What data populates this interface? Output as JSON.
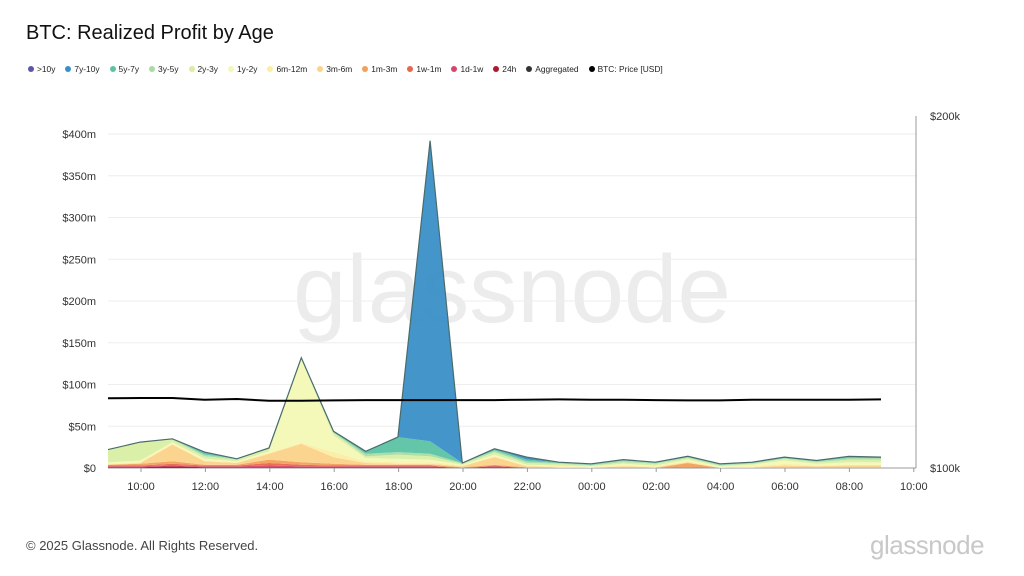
{
  "chart_data": {
    "type": "area",
    "title": "BTC: Realized Profit by Age",
    "x": [
      "09:00",
      "10:00",
      "11:00",
      "12:00",
      "13:00",
      "14:00",
      "15:00",
      "16:00",
      "17:00",
      "18:00",
      "19:00",
      "20:00",
      "21:00",
      "22:00",
      "23:00",
      "00:00",
      "01:00",
      "02:00",
      "03:00",
      "04:00",
      "05:00",
      "06:00",
      "07:00",
      "08:00",
      "09:00"
    ],
    "x_ticks": [
      "10:00",
      "12:00",
      "14:00",
      "16:00",
      "18:00",
      "20:00",
      "22:00",
      "00:00",
      "02:00",
      "04:00",
      "06:00",
      "08:00",
      "10:00"
    ],
    "y_ticks": [
      "$0",
      "$50m",
      "$100m",
      "$150m",
      "$200m",
      "$250m",
      "$300m",
      "$350m",
      "$400m"
    ],
    "y2_ticks": [
      "$100k",
      "$200k"
    ],
    "ylim": [
      0,
      400
    ],
    "y2lim": [
      100000,
      200000
    ],
    "stacking": "stacked",
    "grid": true,
    "legend_position": "top-left",
    "series": [
      {
        "name": "24h",
        "color": "#b0172f",
        "values": [
          1,
          1,
          2,
          1,
          1,
          1,
          1,
          1,
          1,
          1,
          1,
          0,
          1,
          0,
          0,
          0,
          0,
          0,
          0,
          0,
          0,
          0,
          0,
          0,
          0
        ]
      },
      {
        "name": "1d-1w",
        "color": "#d9466b",
        "values": [
          1,
          1,
          1,
          1,
          1,
          2,
          1,
          1,
          1,
          1,
          1,
          0,
          1,
          0,
          0,
          0,
          0,
          0,
          0,
          0,
          0,
          0,
          0,
          0,
          0
        ]
      },
      {
        "name": "1w-1m",
        "color": "#e8674f",
        "values": [
          1,
          1,
          2,
          1,
          1,
          3,
          2,
          1,
          1,
          1,
          1,
          0,
          1,
          0,
          0,
          0,
          0,
          0,
          1,
          0,
          0,
          0,
          0,
          0,
          0
        ]
      },
      {
        "name": "1m-3m",
        "color": "#f2a05b",
        "values": [
          1,
          2,
          3,
          1,
          1,
          4,
          3,
          2,
          1,
          1,
          1,
          1,
          1,
          1,
          0,
          0,
          1,
          0,
          5,
          0,
          0,
          1,
          1,
          1,
          1
        ]
      },
      {
        "name": "3m-6m",
        "color": "#fbd38a",
        "values": [
          0,
          1,
          20,
          4,
          2,
          7,
          22,
          8,
          2,
          1,
          1,
          1,
          9,
          1,
          1,
          0,
          1,
          1,
          1,
          0,
          1,
          2,
          1,
          2,
          2
        ]
      },
      {
        "name": "6m-12m",
        "color": "#fbeea3",
        "values": [
          1,
          1,
          1,
          1,
          1,
          1,
          1,
          6,
          2,
          2,
          2,
          1,
          1,
          1,
          1,
          1,
          1,
          1,
          1,
          1,
          1,
          2,
          1,
          1,
          1
        ]
      },
      {
        "name": "1y-2y",
        "color": "#f3f8b4",
        "values": [
          2,
          2,
          2,
          2,
          1,
          2,
          100,
          20,
          4,
          4,
          3,
          1,
          2,
          1,
          1,
          1,
          2,
          1,
          2,
          1,
          2,
          4,
          2,
          3,
          3
        ]
      },
      {
        "name": "2y-3y",
        "color": "#d8eea3",
        "values": [
          15,
          22,
          3,
          3,
          2,
          3,
          1,
          3,
          2,
          5,
          4,
          1,
          3,
          2,
          2,
          1,
          2,
          2,
          2,
          1,
          1,
          2,
          2,
          3,
          3
        ]
      },
      {
        "name": "3y-5y",
        "color": "#a8dba5",
        "values": [
          0,
          0,
          1,
          2,
          1,
          1,
          1,
          1,
          3,
          3,
          3,
          1,
          2,
          2,
          1,
          1,
          2,
          1,
          1,
          1,
          1,
          1,
          1,
          2,
          2
        ]
      },
      {
        "name": "5y-7y",
        "color": "#5cc3a4",
        "values": [
          0,
          0,
          0,
          2,
          0,
          0,
          0,
          1,
          3,
          18,
          15,
          0,
          2,
          2,
          1,
          1,
          1,
          1,
          1,
          1,
          1,
          1,
          1,
          2,
          1
        ]
      },
      {
        "name": "7y-10y",
        "color": "#3a8fc6",
        "values": [
          0,
          0,
          0,
          1,
          0,
          0,
          0,
          0,
          0,
          0,
          359,
          0,
          0,
          3,
          0,
          0,
          0,
          0,
          0,
          0,
          0,
          0,
          0,
          0,
          0
        ]
      },
      {
        "name": ">10y",
        "color": "#5a57a8",
        "values": [
          0,
          0,
          0,
          0,
          0,
          0,
          0,
          0,
          0,
          0,
          1,
          0,
          0,
          0,
          0,
          0,
          0,
          0,
          0,
          0,
          0,
          0,
          0,
          0,
          0
        ]
      }
    ],
    "price_series": {
      "name": "BTC: Price [USD]",
      "color": "#000000",
      "values": [
        119800,
        119900,
        119900,
        119400,
        119600,
        119100,
        119100,
        119200,
        119300,
        119300,
        119300,
        119300,
        119300,
        119400,
        119500,
        119400,
        119400,
        119300,
        119200,
        119200,
        119400,
        119400,
        119400,
        119400,
        119500
      ]
    }
  },
  "legend": [
    {
      "label": ">10y",
      "color": "#5a57a8"
    },
    {
      "label": "7y-10y",
      "color": "#3a8fc6"
    },
    {
      "label": "5y-7y",
      "color": "#5cc3a4"
    },
    {
      "label": "3y-5y",
      "color": "#a8dba5"
    },
    {
      "label": "2y-3y",
      "color": "#d8eea3"
    },
    {
      "label": "1y-2y",
      "color": "#f3f8b4"
    },
    {
      "label": "6m-12m",
      "color": "#fbeea3"
    },
    {
      "label": "3m-6m",
      "color": "#fbd38a"
    },
    {
      "label": "1m-3m",
      "color": "#f2a05b"
    },
    {
      "label": "1w-1m",
      "color": "#e8674f"
    },
    {
      "label": "1d-1w",
      "color": "#d9466b"
    },
    {
      "label": "24h",
      "color": "#b0172f"
    },
    {
      "label": "Aggregated",
      "color": "#333333"
    },
    {
      "label": "BTC: Price [USD]",
      "color": "#000000"
    }
  ],
  "watermark": "glassnode",
  "footer": "© 2025 Glassnode. All Rights Reserved.",
  "brand": "glassnode"
}
